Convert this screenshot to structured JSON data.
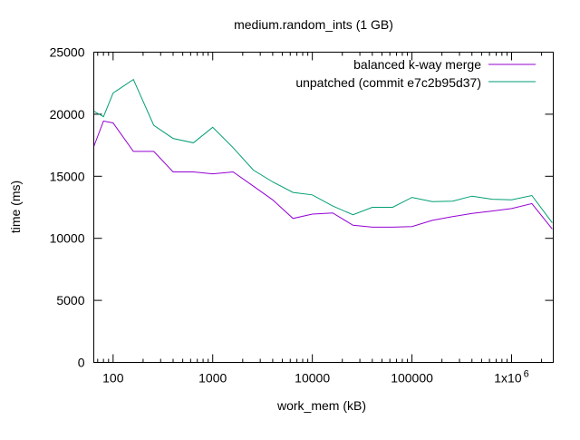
{
  "chart_data": {
    "type": "line",
    "title": "medium.random_ints (1 GB)",
    "xlabel": "work_mem (kB)",
    "ylabel": "time (ms)",
    "xscale": "log",
    "xlim": [
      64,
      2621440
    ],
    "ylim": [
      0,
      25000
    ],
    "grid": false,
    "legend_position": "top-right",
    "x_ticks": [
      {
        "value": 100,
        "label": "100"
      },
      {
        "value": 1000,
        "label": "1000"
      },
      {
        "value": 10000,
        "label": "10000"
      },
      {
        "value": 100000,
        "label": "100000"
      },
      {
        "value": 1000000,
        "label": "1x10",
        "sup": "6"
      }
    ],
    "y_ticks": [
      {
        "value": 0,
        "label": "0"
      },
      {
        "value": 5000,
        "label": "5000"
      },
      {
        "value": 10000,
        "label": "10000"
      },
      {
        "value": 15000,
        "label": "15000"
      },
      {
        "value": 20000,
        "label": "20000"
      },
      {
        "value": 25000,
        "label": "25000"
      }
    ],
    "x": [
      64,
      80,
      100,
      160,
      256,
      400,
      640,
      1000,
      1600,
      2560,
      4000,
      6400,
      10000,
      16000,
      25600,
      40000,
      64000,
      100000,
      160000,
      256000,
      400000,
      640000,
      1000000,
      1600000,
      2560000
    ],
    "series": [
      {
        "name": "balanced k-way merge",
        "color": "#9400d3",
        "values": [
          17400,
          19450,
          19300,
          17000,
          17000,
          15350,
          15350,
          15200,
          15350,
          14200,
          13100,
          11600,
          11950,
          12050,
          11050,
          10900,
          10900,
          10950,
          11450,
          11750,
          12000,
          12200,
          12400,
          12800,
          10750
        ]
      },
      {
        "name": "unpatched (commit e7c2b95d37)",
        "color": "#009e73",
        "values": [
          20250,
          19800,
          21700,
          22800,
          19100,
          18050,
          17700,
          18950,
          17300,
          15500,
          14550,
          13700,
          13500,
          12600,
          11900,
          12500,
          12500,
          13300,
          12950,
          13000,
          13400,
          13150,
          13100,
          13450,
          11250
        ]
      }
    ]
  }
}
